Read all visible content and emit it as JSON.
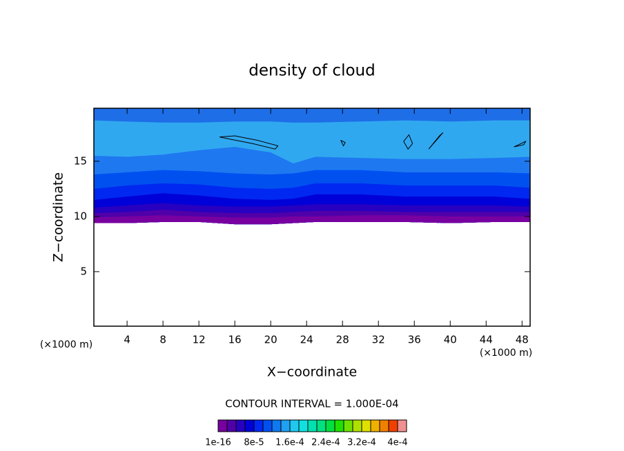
{
  "chart_data": {
    "type": "contour",
    "title": "density of cloud",
    "x_label": "X−coordinate",
    "y_label": "Z−coordinate",
    "x_unit": "(×1000 m)",
    "y_unit": "(×1000 m)",
    "contour_interval": "CONTOUR INTERVAL = 1.000E-04",
    "xlim": [
      0.3,
      48.9
    ],
    "ylim": [
      0.06,
      19.8
    ],
    "xticks": [
      4,
      8,
      12,
      16,
      20,
      24,
      28,
      32,
      36,
      40,
      44,
      48
    ],
    "yticks": [
      5,
      10,
      15
    ],
    "field": {
      "x": [
        0.3,
        4,
        8,
        12,
        16,
        20,
        22.5,
        25,
        30,
        35,
        40,
        45,
        48.9
      ],
      "base": [
        9.4,
        9.4,
        9.5,
        9.5,
        9.3,
        9.3,
        9.4,
        9.5,
        9.5,
        9.5,
        9.4,
        9.5,
        9.5
      ],
      "bands": [
        {
          "color": "#7800a0",
          "top": [
            9.9,
            10,
            10.1,
            10,
            9.9,
            9.9,
            10,
            10,
            10.1,
            10.1,
            10,
            10,
            10
          ]
        },
        {
          "color": "#5000a8",
          "top": [
            10.3,
            10.4,
            10.6,
            10.4,
            10.3,
            10.3,
            10.4,
            10.5,
            10.5,
            10.4,
            10.4,
            10.4,
            10.4
          ]
        },
        {
          "color": "#2800c0",
          "top": [
            10.8,
            11,
            11.2,
            11,
            10.9,
            10.9,
            11,
            11.1,
            11.1,
            11,
            11,
            11,
            10.9
          ]
        },
        {
          "color": "#0000d8",
          "top": [
            11.5,
            11.8,
            12.1,
            11.9,
            11.6,
            11.5,
            11.6,
            12,
            12,
            11.8,
            11.8,
            11.8,
            11.6
          ]
        },
        {
          "color": "#0028f0",
          "top": [
            12.5,
            12.8,
            13,
            12.9,
            12.6,
            12.5,
            12.6,
            13,
            13,
            12.8,
            12.8,
            12.8,
            12.6
          ]
        },
        {
          "color": "#0050f0",
          "top": [
            13.8,
            14,
            14.2,
            14.1,
            13.9,
            13.8,
            13.9,
            14.2,
            14.2,
            14,
            14,
            14,
            13.9
          ]
        },
        {
          "color": "#1e78f0",
          "top": [
            15.5,
            15.4,
            15.6,
            16,
            16.3,
            15.8,
            14.8,
            15.4,
            15.3,
            15.2,
            15.2,
            15.3,
            15.4
          ]
        },
        {
          "color": "#30a8f0",
          "top": [
            18.7,
            18.6,
            18.5,
            18.5,
            18.6,
            18.6,
            18.5,
            18.5,
            18.6,
            18.7,
            18.6,
            18.7,
            18.7
          ]
        },
        {
          "color": "#1e6ee8",
          "top": [
            19.8,
            19.8,
            19.8,
            19.8,
            19.8,
            19.8,
            19.8,
            19.8,
            19.8,
            19.8,
            19.8,
            19.8,
            19.8
          ]
        }
      ],
      "lines": [
        {
          "x": [
            14.3,
            16,
            18.5,
            20.8,
            20.5,
            18,
            15.5,
            14.3
          ],
          "y": [
            17.2,
            17.3,
            16.9,
            16.4,
            16.1,
            16.6,
            17,
            17.2
          ]
        },
        {
          "x": [
            34.8,
            35.4,
            35.8,
            35.3,
            34.8
          ],
          "y": [
            16.8,
            17.4,
            16.6,
            16.1,
            16.8
          ]
        },
        {
          "x": [
            37.6,
            39.2,
            38.8,
            37.6
          ],
          "y": [
            16.1,
            17.6,
            17.3,
            16.1
          ]
        },
        {
          "x": [
            47.1,
            48.4,
            48.2,
            47.1
          ],
          "y": [
            16.3,
            16.8,
            16.5,
            16.3
          ]
        },
        {
          "x": [
            27.8,
            28.3,
            28.1,
            27.8
          ],
          "y": [
            16.9,
            16.7,
            16.4,
            16.9
          ]
        }
      ]
    },
    "colorbar": {
      "colors": [
        "#7800a0",
        "#5000a8",
        "#2800c0",
        "#0000d8",
        "#0028f0",
        "#0050f0",
        "#1078f0",
        "#20a0f0",
        "#20c8f0",
        "#10e0e0",
        "#00e0b0",
        "#00e080",
        "#00e040",
        "#20e000",
        "#70e000",
        "#b0e000",
        "#e0e000",
        "#f0b000",
        "#f08000",
        "#f04000",
        "#f09090"
      ],
      "clim": [
        0,
        0.00042
      ],
      "ticks": [
        {
          "value": 1e-16,
          "label": "1e-16"
        },
        {
          "value": 8e-05,
          "label": "8e-5"
        },
        {
          "value": 0.00016,
          "label": "1.6e-4"
        },
        {
          "value": 0.00024,
          "label": "2.4e-4"
        },
        {
          "value": 0.00032,
          "label": "3.2e-4"
        },
        {
          "value": 0.0004,
          "label": "4e-4"
        }
      ]
    }
  }
}
